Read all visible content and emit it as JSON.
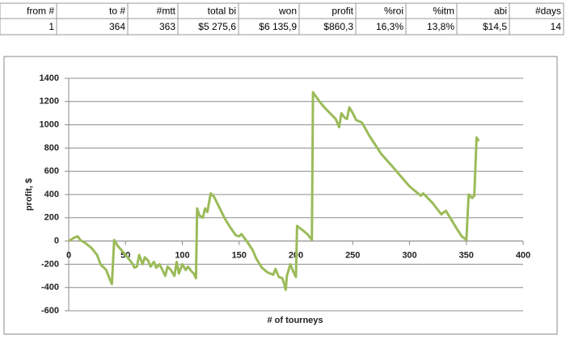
{
  "table": {
    "header": [
      "from #",
      "to #",
      "#mtt",
      "total bi",
      "won",
      "profit",
      "%roi",
      "%itm",
      "abi",
      "#days"
    ],
    "rows": [
      [
        "1",
        "364",
        "363",
        "$5 275,6",
        "$6 135,9",
        "$860,3",
        "16,3%",
        "13,8%",
        "$14,5",
        "14"
      ]
    ]
  },
  "chart_data": {
    "type": "line",
    "x_label": "# of tourneys",
    "y_label": "profit, $",
    "x": [
      0,
      5,
      8,
      10,
      15,
      20,
      25,
      28,
      33,
      35,
      37,
      38,
      40,
      43,
      50,
      55,
      58,
      60,
      62,
      65,
      67,
      70,
      72,
      75,
      77,
      80,
      83,
      85,
      87,
      90,
      93,
      95,
      97,
      100,
      103,
      105,
      108,
      110,
      112,
      113,
      115,
      118,
      120,
      122,
      125,
      128,
      132,
      137,
      142,
      147,
      150,
      152,
      155,
      158,
      162,
      165,
      170,
      175,
      180,
      182,
      185,
      188,
      190,
      191,
      192,
      195,
      198,
      200,
      201,
      205,
      210,
      214,
      215,
      220,
      225,
      230,
      235,
      238,
      240,
      243,
      245,
      247,
      250,
      253,
      258,
      265,
      275,
      285,
      292,
      300,
      305,
      310,
      312,
      320,
      328,
      332,
      337,
      342,
      346,
      350,
      352,
      355,
      357,
      359,
      361
    ],
    "series": [
      {
        "color": "#9bbb59",
        "values": [
          0,
          30,
          40,
          10,
          -20,
          -60,
          -120,
          -200,
          -250,
          -300,
          -350,
          -370,
          10,
          -40,
          -120,
          -180,
          -230,
          -220,
          -120,
          -200,
          -140,
          -170,
          -220,
          -180,
          -230,
          -200,
          -260,
          -300,
          -220,
          -250,
          -300,
          -180,
          -280,
          -200,
          -250,
          -220,
          -260,
          -280,
          -320,
          280,
          220,
          200,
          280,
          250,
          410,
          380,
          300,
          200,
          120,
          50,
          40,
          60,
          20,
          -20,
          -80,
          -150,
          -230,
          -270,
          -290,
          -240,
          -310,
          -320,
          -380,
          -420,
          -300,
          -200,
          -270,
          -310,
          130,
          100,
          60,
          10,
          1280,
          1210,
          1150,
          1100,
          1050,
          980,
          1100,
          1060,
          1050,
          1150,
          1100,
          1040,
          1020,
          900,
          750,
          640,
          560,
          470,
          430,
          390,
          410,
          330,
          230,
          260,
          180,
          100,
          40,
          10,
          400,
          370,
          390,
          890,
          860
        ]
      }
    ],
    "xlim": [
      0,
      400
    ],
    "xticks": [
      0,
      50,
      100,
      150,
      200,
      250,
      300,
      350,
      400
    ],
    "ylim": [
      -600,
      1400
    ],
    "yticks": [
      -600,
      -400,
      -200,
      0,
      200,
      400,
      600,
      800,
      1000,
      1200,
      1400
    ],
    "grid": true
  }
}
